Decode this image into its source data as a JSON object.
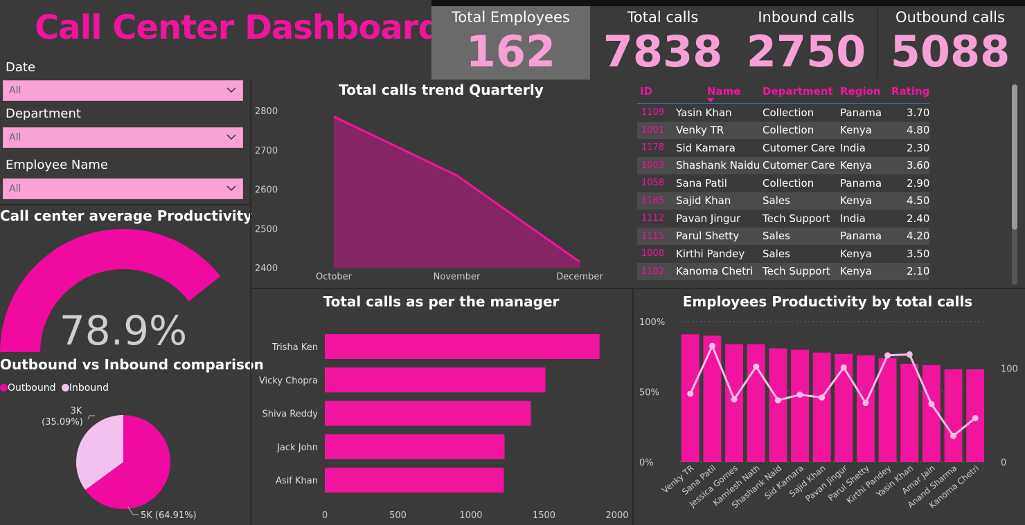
{
  "dashboard_title": "Call Center Dashboard",
  "kpis": [
    {
      "label": "Total Employees",
      "value": "162"
    },
    {
      "label": "Total calls",
      "value": "7838"
    },
    {
      "label": "Inbound calls",
      "value": "2750"
    },
    {
      "label": "Outbound calls",
      "value": "5088"
    }
  ],
  "filters": [
    {
      "label": "Date",
      "value": "All"
    },
    {
      "label": "Department",
      "value": "All"
    },
    {
      "label": "Employee Name",
      "value": "All"
    }
  ],
  "gauge": {
    "title": "Call center average Productivity",
    "value_text": "78.9%",
    "value": 0.789
  },
  "pie": {
    "title": "Outbound vs Inbound comparison",
    "legend": [
      "Outbound",
      "Inbound"
    ],
    "colors": {
      "Outbound": "#f00aa0",
      "Inbound": "#f2c1ee"
    },
    "label_inbound_1": "3K",
    "label_inbound_2": "(35.09%)",
    "label_outbound": "5K (64.91%)"
  },
  "table": {
    "headers": [
      "ID",
      "Name",
      "Department",
      "Region",
      "Rating"
    ],
    "rows": [
      [
        "1109",
        "Yasin Khan",
        "Collection",
        "Panama",
        "3.70"
      ],
      [
        "1001",
        "Venky TR",
        "Collection",
        "Kenya",
        "4.80"
      ],
      [
        "1178",
        "Sid Kamara",
        "Cutomer Care",
        "India",
        "2.30"
      ],
      [
        "1003",
        "Shashank Naidu",
        "Cutomer Care",
        "Kenya",
        "3.60"
      ],
      [
        "1058",
        "Sana Patil",
        "Collection",
        "Panama",
        "2.90"
      ],
      [
        "1185",
        "Sajid Khan",
        "Sales",
        "Kenya",
        "4.50"
      ],
      [
        "1112",
        "Pavan Jingur",
        "Tech Support",
        "India",
        "2.40"
      ],
      [
        "1115",
        "Parul Shetty",
        "Sales",
        "Panama",
        "4.20"
      ],
      [
        "1008",
        "Kirthi Pandey",
        "Sales",
        "Kenya",
        "3.50"
      ],
      [
        "1102",
        "Kanoma Chetri",
        "Tech Support",
        "Kenya",
        "2.10"
      ]
    ]
  },
  "colors": {
    "accent": "#f0159c",
    "kpi_value": "#f6a0d6",
    "background": "#3a3a3a",
    "area_fill": "#862563"
  },
  "chart_data": [
    {
      "type": "area",
      "title": "Total calls trend Quarterly",
      "categories": [
        "October",
        "November",
        "December"
      ],
      "values": [
        2785,
        2635,
        2415
      ],
      "ylim": [
        2400,
        2800
      ],
      "yticks": [
        2800,
        2700,
        2600,
        2500,
        2400
      ]
    },
    {
      "type": "bar",
      "orientation": "horizontal",
      "title": "Total calls as per the manager",
      "categories": [
        "Trisha Ken",
        "Vicky Chopra",
        "Shiva Reddy",
        "Jack John",
        "Asif Khan"
      ],
      "values": [
        1880,
        1510,
        1410,
        1230,
        1225
      ],
      "xlim": [
        0,
        2000
      ],
      "xticks": [
        0,
        500,
        1000,
        1500,
        2000
      ]
    },
    {
      "type": "bar",
      "title": "Employees Productivity by total calls",
      "categories": [
        "Venky TR",
        "Sana Patil",
        "Jessica Gomes",
        "Kamlesh Nath",
        "Shashank Naid",
        "Sid Kamara",
        "Sajid Khan",
        "Pavan Jingur",
        "Parul Shetty",
        "Kirthi Pandey",
        "Yasin Khan",
        "Amar Jain",
        "Anand Sharma",
        "Kanoma Chetri"
      ],
      "series": [
        {
          "values": [
            0.91,
            0.9,
            0.84,
            0.84,
            0.81,
            0.8,
            0.78,
            0.77,
            0.76,
            0.74,
            0.7,
            0.69,
            0.66,
            0.66
          ]
        },
        {
          "type": "line",
          "axis": "right",
          "values": [
            73,
            124,
            67,
            102,
            66,
            72,
            69,
            101,
            63,
            114,
            115,
            62,
            28,
            47
          ]
        }
      ],
      "yticks_left": [
        "100%",
        "50%",
        "0%"
      ],
      "yticks_right": [
        "100",
        "0"
      ],
      "ylim_left": [
        0,
        1
      ],
      "ylim_right": [
        0,
        150
      ]
    },
    {
      "type": "pie",
      "categories": [
        "Outbound",
        "Inbound"
      ],
      "values": [
        64.91,
        35.09
      ]
    }
  ]
}
